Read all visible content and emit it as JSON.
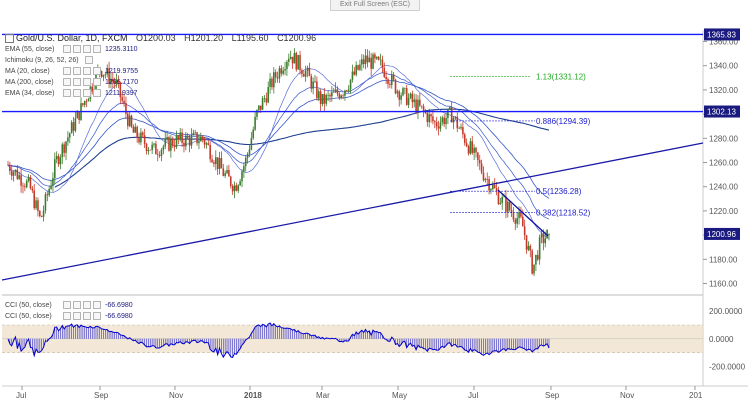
{
  "toolbar": {
    "exit_fullscreen": "Exit Full Screen (ESC)"
  },
  "header": {
    "symbol": "Gold/U.S. Dollar, 1D, FXCM",
    "open": "O1200.03",
    "high": "H1201.20",
    "low": "L1195.60",
    "close": "C1200.96"
  },
  "indicators": [
    {
      "label": "EMA (55, close)",
      "value": "1235.3110"
    },
    {
      "label": "Ichimoku (9, 26, 52, 26)",
      "value": ""
    },
    {
      "label": "MA (20, close)",
      "value": "1219.9755"
    },
    {
      "label": "MA (200, close)",
      "value": "1266.7170"
    },
    {
      "label": "EMA (34, close)",
      "value": "1211.9397"
    }
  ],
  "cci_indicators": [
    {
      "label": "CCI (50, close)",
      "value": "-66.6980"
    },
    {
      "label": "CCI (50, close)",
      "value": "-66.6980"
    }
  ],
  "colors": {
    "up_candle": "#3a7d2c",
    "down_candle": "#c43a2a",
    "horizontal_line": "#1a1aff",
    "trend_line": "#1a1aa8",
    "ma_200": "#1f3f8f",
    "ma_fast": "#3355cc",
    "cci_line": "#0000cc",
    "cci_band": "#eedec8",
    "label_bg": "#1a1a80",
    "fib_text": "#1a1acc",
    "fib_green": "#22aa22"
  },
  "chart_data": {
    "type": "candlestick",
    "ylim": [
      1150,
      1375
    ],
    "y_ticks": [
      "1160.00",
      "1180.00",
      "1200.00",
      "1220.00",
      "1240.00",
      "1260.00",
      "1280.00",
      "1300.00",
      "1320.00",
      "1340.00",
      "1360.00"
    ],
    "x_ticks": [
      "Jul",
      "Sep",
      "Nov",
      "2018",
      "Mar",
      "May",
      "Jul",
      "Sep",
      "Nov",
      "201"
    ],
    "price_labels": [
      {
        "text": "1365.83",
        "value": 1365.83
      },
      {
        "text": "1302.13",
        "value": 1302.13
      },
      {
        "text": "1200.96",
        "value": 1200.96
      }
    ],
    "horizontal_lines": [
      1365.83,
      1302.13
    ],
    "fib_levels": [
      {
        "text": "1.13(1331.12)",
        "value": 1331.12,
        "color": "green"
      },
      {
        "text": "0.886(1294.39)",
        "value": 1294.39,
        "color": "blue"
      },
      {
        "text": "0.5(1236.28)",
        "value": 1236.28,
        "color": "blue"
      },
      {
        "text": "0.382(1218.52)",
        "value": 1218.52,
        "color": "blue"
      }
    ],
    "cci": {
      "ylim": [
        -300,
        300
      ],
      "y_ticks": [
        "200.0000",
        "0.0000",
        "-200.0000"
      ],
      "band": [
        -100,
        100
      ],
      "last": -66.698
    }
  }
}
